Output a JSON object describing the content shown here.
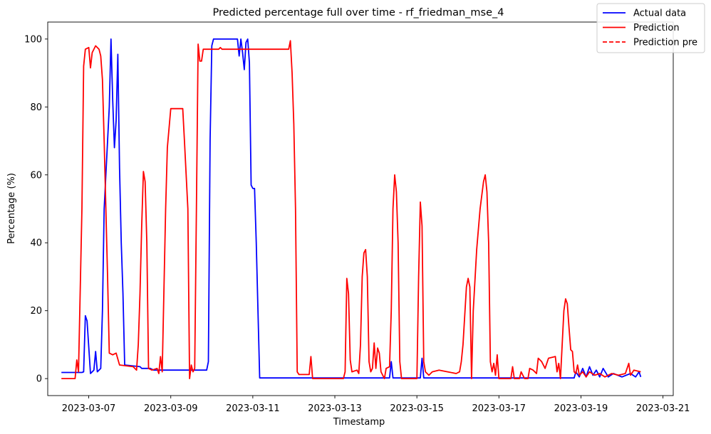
{
  "chart_data": {
    "type": "line",
    "title": "Predicted percentage full over time - rf_friedman_mse_4",
    "xlabel": "Timestamp",
    "ylabel": "Percentage (%)",
    "xlim": [
      "2023-03-06T00:00",
      "2023-03-21T06:00"
    ],
    "ylim": [
      -5,
      105
    ],
    "grid": false,
    "legend_position": "top-right",
    "x_ticks": [
      "2023-03-07",
      "2023-03-09",
      "2023-03-11",
      "2023-03-13",
      "2023-03-15",
      "2023-03-17",
      "2023-03-19",
      "2023-03-21"
    ],
    "y_ticks": [
      0,
      20,
      40,
      60,
      80,
      100
    ],
    "series": [
      {
        "name": "Actual data",
        "color": "#0000ff",
        "style": "solid",
        "points": [
          [
            "2023-03-06T08:00",
            1.8
          ],
          [
            "2023-03-06T20:00",
            1.8
          ],
          [
            "2023-03-06T21:00",
            2
          ],
          [
            "2023-03-06T22:00",
            18.5
          ],
          [
            "2023-03-06T23:00",
            17
          ],
          [
            "2023-03-07T01:00",
            1.5
          ],
          [
            "2023-03-07T03:00",
            2.5
          ],
          [
            "2023-03-07T04:00",
            8
          ],
          [
            "2023-03-07T05:00",
            2
          ],
          [
            "2023-03-07T06:00",
            2.5
          ],
          [
            "2023-03-07T07:00",
            3
          ],
          [
            "2023-03-07T08:00",
            20
          ],
          [
            "2023-03-07T09:00",
            50
          ],
          [
            "2023-03-07T11:00",
            70
          ],
          [
            "2023-03-07T12:00",
            80
          ],
          [
            "2023-03-07T13:00",
            100
          ],
          [
            "2023-03-07T14:00",
            82
          ],
          [
            "2023-03-07T15:00",
            68
          ],
          [
            "2023-03-07T16:00",
            76
          ],
          [
            "2023-03-07T17:00",
            95.5
          ],
          [
            "2023-03-07T18:00",
            62
          ],
          [
            "2023-03-07T19:00",
            40
          ],
          [
            "2023-03-07T20:00",
            25
          ],
          [
            "2023-03-07T21:00",
            4
          ],
          [
            "2023-03-08T06:00",
            3.5
          ],
          [
            "2023-03-08T07:00",
            3
          ],
          [
            "2023-03-08T12:00",
            3
          ],
          [
            "2023-03-08T14:00",
            2.5
          ],
          [
            "2023-03-09T21:00",
            2.5
          ],
          [
            "2023-03-09T22:00",
            5
          ],
          [
            "2023-03-09T23:00",
            70
          ],
          [
            "2023-03-10T00:00",
            98
          ],
          [
            "2023-03-10T01:00",
            100
          ],
          [
            "2023-03-10T15:00",
            100
          ],
          [
            "2023-03-10T16:00",
            95
          ],
          [
            "2023-03-10T17:00",
            100
          ],
          [
            "2023-03-10T18:00",
            96
          ],
          [
            "2023-03-10T19:00",
            91
          ],
          [
            "2023-03-10T20:00",
            99
          ],
          [
            "2023-03-10T21:00",
            100
          ],
          [
            "2023-03-10T22:00",
            93
          ],
          [
            "2023-03-10T23:00",
            57
          ],
          [
            "2023-03-11T00:00",
            56
          ],
          [
            "2023-03-11T01:00",
            56
          ],
          [
            "2023-03-11T02:00",
            40
          ],
          [
            "2023-03-11T03:00",
            20
          ],
          [
            "2023-03-11T04:00",
            0.2
          ],
          [
            "2023-03-14T08:00",
            0.2
          ],
          [
            "2023-03-14T09:00",
            5
          ],
          [
            "2023-03-14T10:00",
            0.2
          ],
          [
            "2023-03-15T02:00",
            0.2
          ],
          [
            "2023-03-15T03:00",
            6
          ],
          [
            "2023-03-15T04:00",
            0.2
          ],
          [
            "2023-03-18T20:00",
            0.2
          ],
          [
            "2023-03-18T21:00",
            2
          ],
          [
            "2023-03-18T23:00",
            0.5
          ],
          [
            "2023-03-19T01:00",
            3
          ],
          [
            "2023-03-19T03:00",
            0.5
          ],
          [
            "2023-03-19T05:00",
            3.5
          ],
          [
            "2023-03-19T07:00",
            1
          ],
          [
            "2023-03-19T09:00",
            2.5
          ],
          [
            "2023-03-19T11:00",
            0.5
          ],
          [
            "2023-03-19T13:00",
            3
          ],
          [
            "2023-03-19T16:00",
            0.5
          ],
          [
            "2023-03-19T19:00",
            1.5
          ],
          [
            "2023-03-20T00:00",
            0.5
          ],
          [
            "2023-03-20T05:00",
            1.5
          ],
          [
            "2023-03-20T08:00",
            0.5
          ],
          [
            "2023-03-20T10:00",
            2
          ],
          [
            "2023-03-20T11:00",
            0.5
          ]
        ]
      },
      {
        "name": "Prediction",
        "color": "#ff0000",
        "style": "solid",
        "points": [
          [
            "2023-03-06T08:00",
            0
          ],
          [
            "2023-03-06T16:00",
            0
          ],
          [
            "2023-03-06T17:00",
            5.5
          ],
          [
            "2023-03-06T18:00",
            2
          ],
          [
            "2023-03-06T20:00",
            50
          ],
          [
            "2023-03-06T21:00",
            92
          ],
          [
            "2023-03-06T22:00",
            97
          ],
          [
            "2023-03-07T00:00",
            97.5
          ],
          [
            "2023-03-07T01:00",
            91.5
          ],
          [
            "2023-03-07T02:00",
            96
          ],
          [
            "2023-03-07T04:00",
            98
          ],
          [
            "2023-03-07T06:00",
            97
          ],
          [
            "2023-03-07T07:00",
            95
          ],
          [
            "2023-03-07T08:00",
            88
          ],
          [
            "2023-03-07T09:00",
            70
          ],
          [
            "2023-03-07T10:00",
            50
          ],
          [
            "2023-03-07T11:00",
            30
          ],
          [
            "2023-03-07T12:00",
            7.5
          ],
          [
            "2023-03-07T14:00",
            7
          ],
          [
            "2023-03-07T16:00",
            7.5
          ],
          [
            "2023-03-07T18:00",
            4
          ],
          [
            "2023-03-08T02:00",
            3.5
          ],
          [
            "2023-03-08T04:00",
            2.5
          ],
          [
            "2023-03-08T05:00",
            10
          ],
          [
            "2023-03-08T06:00",
            25
          ],
          [
            "2023-03-08T07:00",
            45
          ],
          [
            "2023-03-08T08:00",
            61
          ],
          [
            "2023-03-08T09:00",
            58
          ],
          [
            "2023-03-08T10:00",
            40
          ],
          [
            "2023-03-08T11:00",
            3
          ],
          [
            "2023-03-08T13:00",
            2.5
          ],
          [
            "2023-03-08T16:00",
            3
          ],
          [
            "2023-03-08T17:00",
            1.5
          ],
          [
            "2023-03-08T18:00",
            6.5
          ],
          [
            "2023-03-08T19:00",
            2
          ],
          [
            "2023-03-08T21:00",
            50
          ],
          [
            "2023-03-08T22:00",
            68
          ],
          [
            "2023-03-09T00:00",
            79.5
          ],
          [
            "2023-03-09T07:00",
            79.5
          ],
          [
            "2023-03-09T08:00",
            70
          ],
          [
            "2023-03-09T09:00",
            60
          ],
          [
            "2023-03-09T10:00",
            50
          ],
          [
            "2023-03-09T11:00",
            0
          ],
          [
            "2023-03-09T12:00",
            4
          ],
          [
            "2023-03-09T13:00",
            2
          ],
          [
            "2023-03-09T14:00",
            3
          ],
          [
            "2023-03-09T15:00",
            50
          ],
          [
            "2023-03-09T16:00",
            98.5
          ],
          [
            "2023-03-09T17:00",
            93.5
          ],
          [
            "2023-03-09T18:00",
            93.5
          ],
          [
            "2023-03-09T19:00",
            97
          ],
          [
            "2023-03-10T04:00",
            97
          ],
          [
            "2023-03-10T05:00",
            97.5
          ],
          [
            "2023-03-10T06:00",
            97
          ],
          [
            "2023-03-11T21:00",
            97
          ],
          [
            "2023-03-11T22:00",
            99.5
          ],
          [
            "2023-03-11T23:00",
            90
          ],
          [
            "2023-03-12T00:00",
            75
          ],
          [
            "2023-03-12T01:00",
            50
          ],
          [
            "2023-03-12T02:00",
            2
          ],
          [
            "2023-03-12T03:00",
            1.2
          ],
          [
            "2023-03-12T09:00",
            1.2
          ],
          [
            "2023-03-12T10:00",
            6.5
          ],
          [
            "2023-03-12T11:00",
            0
          ],
          [
            "2023-03-13T05:00",
            0
          ],
          [
            "2023-03-13T06:00",
            2
          ],
          [
            "2023-03-13T07:00",
            29.5
          ],
          [
            "2023-03-13T08:00",
            25
          ],
          [
            "2023-03-13T09:00",
            5.5
          ],
          [
            "2023-03-13T10:00",
            2
          ],
          [
            "2023-03-13T13:00",
            2.5
          ],
          [
            "2023-03-13T14:00",
            1.5
          ],
          [
            "2023-03-13T15:00",
            10
          ],
          [
            "2023-03-13T16:00",
            30
          ],
          [
            "2023-03-13T17:00",
            37
          ],
          [
            "2023-03-13T18:00",
            38
          ],
          [
            "2023-03-13T19:00",
            30
          ],
          [
            "2023-03-13T20:00",
            5
          ],
          [
            "2023-03-13T21:00",
            2
          ],
          [
            "2023-03-13T22:00",
            3
          ],
          [
            "2023-03-13T23:00",
            10.5
          ],
          [
            "2023-03-14T00:00",
            3
          ],
          [
            "2023-03-14T01:00",
            9
          ],
          [
            "2023-03-14T02:00",
            7.5
          ],
          [
            "2023-03-14T03:00",
            2
          ],
          [
            "2023-03-14T05:00",
            0
          ],
          [
            "2023-03-14T06:00",
            3
          ],
          [
            "2023-03-14T08:00",
            3.5
          ],
          [
            "2023-03-14T09:00",
            20
          ],
          [
            "2023-03-14T10:00",
            50
          ],
          [
            "2023-03-14T11:00",
            60
          ],
          [
            "2023-03-14T12:00",
            55
          ],
          [
            "2023-03-14T13:00",
            40
          ],
          [
            "2023-03-14T14:00",
            5
          ],
          [
            "2023-03-14T15:00",
            0
          ],
          [
            "2023-03-15T00:00",
            0
          ],
          [
            "2023-03-15T01:00",
            30
          ],
          [
            "2023-03-15T02:00",
            52
          ],
          [
            "2023-03-15T03:00",
            45
          ],
          [
            "2023-03-15T04:00",
            5
          ],
          [
            "2023-03-15T05:00",
            2
          ],
          [
            "2023-03-15T07:00",
            1
          ],
          [
            "2023-03-15T09:00",
            2
          ],
          [
            "2023-03-15T13:00",
            2.5
          ],
          [
            "2023-03-15T18:00",
            2
          ],
          [
            "2023-03-15T23:00",
            1.5
          ],
          [
            "2023-03-16T01:00",
            2
          ],
          [
            "2023-03-16T02:00",
            5
          ],
          [
            "2023-03-16T03:00",
            10
          ],
          [
            "2023-03-16T05:00",
            27
          ],
          [
            "2023-03-16T06:00",
            29.5
          ],
          [
            "2023-03-16T07:00",
            27
          ],
          [
            "2023-03-16T08:00",
            0
          ],
          [
            "2023-03-16T09:00",
            20
          ],
          [
            "2023-03-16T11:00",
            38
          ],
          [
            "2023-03-16T13:00",
            50
          ],
          [
            "2023-03-16T15:00",
            58
          ],
          [
            "2023-03-16T16:00",
            60
          ],
          [
            "2023-03-16T17:00",
            55
          ],
          [
            "2023-03-16T18:00",
            40
          ],
          [
            "2023-03-16T19:00",
            5
          ],
          [
            "2023-03-16T20:00",
            2
          ],
          [
            "2023-03-16T21:00",
            4.5
          ],
          [
            "2023-03-16T22:00",
            1
          ],
          [
            "2023-03-16T23:00",
            7
          ],
          [
            "2023-03-17T00:00",
            0
          ],
          [
            "2023-03-17T07:00",
            0
          ],
          [
            "2023-03-17T08:00",
            3.5
          ],
          [
            "2023-03-17T09:00",
            0
          ],
          [
            "2023-03-17T12:00",
            0
          ],
          [
            "2023-03-17T13:00",
            2
          ],
          [
            "2023-03-17T15:00",
            0
          ],
          [
            "2023-03-17T17:00",
            0
          ],
          [
            "2023-03-17T18:00",
            3
          ],
          [
            "2023-03-17T20:00",
            2.5
          ],
          [
            "2023-03-17T22:00",
            1.5
          ],
          [
            "2023-03-17T23:00",
            6
          ],
          [
            "2023-03-18T01:00",
            5
          ],
          [
            "2023-03-18T03:00",
            3
          ],
          [
            "2023-03-18T05:00",
            6
          ],
          [
            "2023-03-18T09:00",
            6.5
          ],
          [
            "2023-03-18T10:00",
            2
          ],
          [
            "2023-03-18T11:00",
            4.5
          ],
          [
            "2023-03-18T12:00",
            0
          ],
          [
            "2023-03-18T13:00",
            10
          ],
          [
            "2023-03-18T14:00",
            20
          ],
          [
            "2023-03-18T15:00",
            23.5
          ],
          [
            "2023-03-18T16:00",
            22
          ],
          [
            "2023-03-18T17:00",
            15
          ],
          [
            "2023-03-18T18:00",
            8.5
          ],
          [
            "2023-03-18T19:00",
            8
          ],
          [
            "2023-03-18T20:00",
            2
          ],
          [
            "2023-03-18T21:00",
            1.5
          ],
          [
            "2023-03-18T22:00",
            4
          ],
          [
            "2023-03-18T23:00",
            1
          ],
          [
            "2023-03-19T01:00",
            2
          ],
          [
            "2023-03-19T03:00",
            0.5
          ],
          [
            "2023-03-19T05:00",
            2
          ],
          [
            "2023-03-19T08:00",
            1
          ],
          [
            "2023-03-19T11:00",
            1.5
          ],
          [
            "2023-03-19T14:00",
            0.5
          ],
          [
            "2023-03-19T18:00",
            1.5
          ],
          [
            "2023-03-19T22:00",
            1
          ],
          [
            "2023-03-20T02:00",
            1.5
          ],
          [
            "2023-03-20T04:00",
            4.5
          ],
          [
            "2023-03-20T05:00",
            1
          ],
          [
            "2023-03-20T07:00",
            2.5
          ],
          [
            "2023-03-20T11:00",
            2
          ]
        ]
      },
      {
        "name": "Prediction pre",
        "color": "#ff0000",
        "style": "dashed",
        "points": []
      }
    ]
  }
}
